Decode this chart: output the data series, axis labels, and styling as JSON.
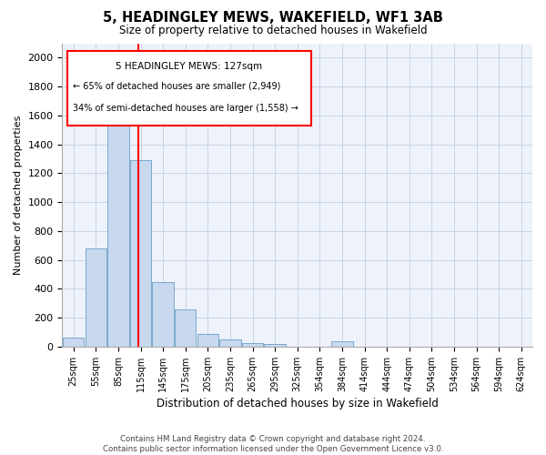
{
  "title": "5, HEADINGLEY MEWS, WAKEFIELD, WF1 3AB",
  "subtitle": "Size of property relative to detached houses in Wakefield",
  "xlabel": "Distribution of detached houses by size in Wakefield",
  "ylabel": "Number of detached properties",
  "bar_color": "#c8d8ee",
  "bar_edge_color": "#7aa8cc",
  "grid_color": "#c8d4e8",
  "background_color": "#eef2fa",
  "categories": [
    "25sqm",
    "55sqm",
    "85sqm",
    "115sqm",
    "145sqm",
    "175sqm",
    "205sqm",
    "235sqm",
    "265sqm",
    "295sqm",
    "325sqm",
    "354sqm",
    "384sqm",
    "414sqm",
    "444sqm",
    "474sqm",
    "504sqm",
    "534sqm",
    "564sqm",
    "594sqm",
    "624sqm"
  ],
  "values": [
    60,
    680,
    1640,
    1290,
    450,
    260,
    85,
    50,
    25,
    20,
    0,
    0,
    35,
    0,
    0,
    0,
    0,
    0,
    0,
    0,
    0
  ],
  "ylim": [
    0,
    2100
  ],
  "yticks": [
    0,
    200,
    400,
    600,
    800,
    1000,
    1200,
    1400,
    1600,
    1800,
    2000
  ],
  "property_label": "5 HEADINGLEY MEWS: 127sqm",
  "annotation_line1": "← 65% of detached houses are smaller (2,949)",
  "annotation_line2": "34% of semi-detached houses are larger (1,558) →",
  "red_line_x": 2.57,
  "footnote1": "Contains HM Land Registry data © Crown copyright and database right 2024.",
  "footnote2": "Contains public sector information licensed under the Open Government Licence v3.0."
}
